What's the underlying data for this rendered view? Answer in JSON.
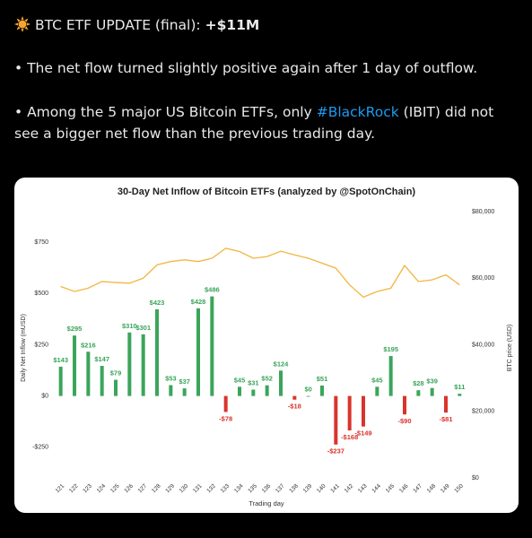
{
  "post": {
    "title": "BTC ETF UPDATE (final):",
    "title_bold": "+$11M",
    "paragraph_1": "• The net flow turned slightly positive again after 1 day of outflow.",
    "paragraph_2_start": "• Among the 5 major US Bitcoin ETFs, only",
    "paragraph_2_hashtag": "#BlackRock",
    "paragraph_2_end": "(IBIT) did not see a bigger net flow than the previous trading day."
  },
  "chart_data": {
    "type": "bar",
    "title": "30-Day Net Inflow of Bitcoin ETFs (analyzed by @SpotOnChain)",
    "xlabel": "Trading day",
    "ylabel": "Daily Net Inflow (mUSD)",
    "y2label": "BTC price (USD)",
    "categories": [
      "121",
      "122",
      "123",
      "124",
      "125",
      "126",
      "127",
      "128",
      "129",
      "130",
      "131",
      "132",
      "133",
      "134",
      "135",
      "136",
      "137",
      "138",
      "139",
      "140",
      "141",
      "142",
      "143",
      "144",
      "145",
      "146",
      "147",
      "148",
      "149",
      "150"
    ],
    "values": [
      143,
      295,
      216,
      147,
      79,
      310,
      301,
      423,
      53,
      37,
      428,
      486,
      -78,
      45,
      31,
      52,
      124,
      -18,
      0,
      51,
      -237,
      -168,
      -149,
      45,
      195,
      -90,
      28,
      39,
      -81,
      11
    ],
    "value_labels": [
      "$143",
      "$295",
      "$216",
      "$147",
      "$79",
      "$310",
      "$301",
      "$423",
      "$53",
      "$37",
      "$428",
      "$486",
      "-$78",
      "$45",
      "$31",
      "$52",
      "$124",
      "-$18",
      "$0",
      "$51",
      "-$237",
      "-$168",
      "-$149",
      "$45",
      "$195",
      "-$90",
      "$28",
      "$39",
      "-$81",
      "$11"
    ],
    "colors": {
      "positive": "#3aa55a",
      "negative": "#d9342b"
    },
    "ylim": [
      -400,
      900
    ],
    "yticks": [
      {
        "value": -250,
        "label": "-$250"
      },
      {
        "value": 0,
        "label": "$0"
      },
      {
        "value": 250,
        "label": "$250"
      },
      {
        "value": 500,
        "label": "$500"
      },
      {
        "value": 750,
        "label": "$750"
      }
    ],
    "y2lim": [
      0,
      80000
    ],
    "y2ticks": [
      {
        "value": 0,
        "label": "$0"
      },
      {
        "value": 20000,
        "label": "$20,000"
      },
      {
        "value": 40000,
        "label": "$40,000"
      },
      {
        "value": 60000,
        "label": "$60,000"
      },
      {
        "value": 80000,
        "label": "$80,000"
      }
    ],
    "series": [
      {
        "type": "line",
        "axis": "y2",
        "color": "#f2b640",
        "values": [
          57500,
          56000,
          57000,
          59000,
          58700,
          58500,
          60000,
          64000,
          65000,
          65500,
          65000,
          66000,
          69000,
          68000,
          66000,
          66500,
          68100,
          67000,
          66000,
          64500,
          63000,
          58000,
          54300,
          56000,
          57000,
          63800,
          59000,
          59500,
          61000,
          58000
        ]
      }
    ]
  }
}
